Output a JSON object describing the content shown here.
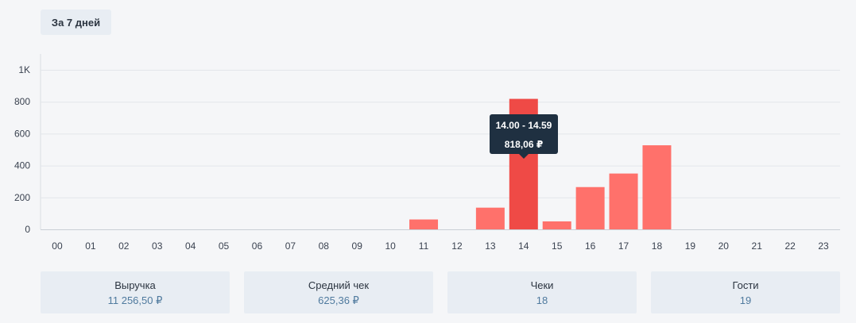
{
  "period": {
    "label": "За 7 дней"
  },
  "chart_data": {
    "type": "bar",
    "categories": [
      "00",
      "01",
      "02",
      "03",
      "04",
      "05",
      "06",
      "07",
      "08",
      "09",
      "10",
      "11",
      "12",
      "13",
      "14",
      "15",
      "16",
      "17",
      "18",
      "19",
      "20",
      "21",
      "22",
      "23"
    ],
    "values": [
      0,
      0,
      0,
      0,
      0,
      0,
      0,
      0,
      0,
      0,
      0,
      62,
      0,
      136,
      818.06,
      50,
      265,
      350,
      527,
      0,
      0,
      0,
      0,
      0
    ],
    "y_ticks": [
      0,
      200,
      400,
      600,
      800,
      1000
    ],
    "y_tick_labels": [
      "0",
      "200",
      "400",
      "600",
      "800",
      "1K"
    ],
    "ylim": [
      0,
      1000
    ],
    "grid": true,
    "highlighted_category": "14",
    "colors": {
      "bar": "#ff716b",
      "highlight": "#ef4a46"
    },
    "tooltip": {
      "range": "14.00 - 14.59",
      "value": "818,06 ₽"
    }
  },
  "stats": [
    {
      "label": "Выручка",
      "value": "11 256,50 ₽"
    },
    {
      "label": "Средний чек",
      "value": "625,36 ₽"
    },
    {
      "label": "Чеки",
      "value": "18"
    },
    {
      "label": "Гости",
      "value": "19"
    }
  ]
}
